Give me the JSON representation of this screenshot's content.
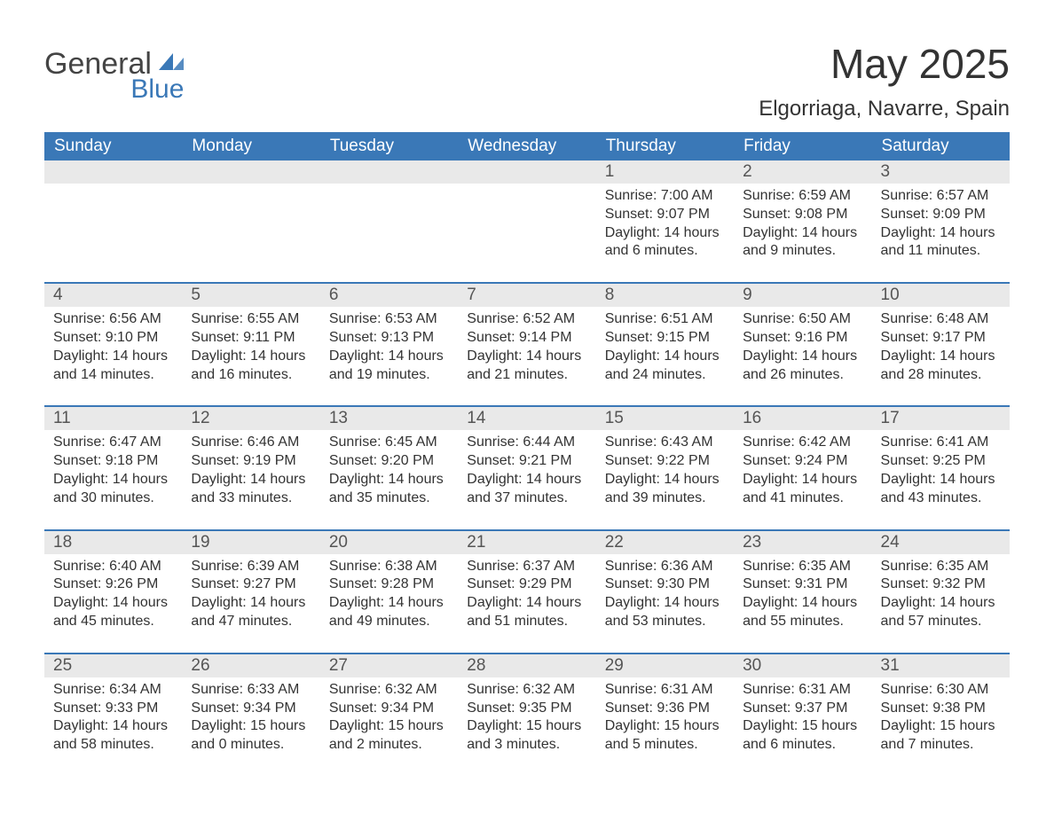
{
  "logo": {
    "general": "General",
    "blue": "Blue",
    "tri_color": "#3a78b7"
  },
  "title": "May 2025",
  "subtitle": "Elgorriaga, Navarre, Spain",
  "header_bg": "#3a78b7",
  "header_fg": "#ffffff",
  "daynum_bg": "#e9e9e9",
  "rule_color": "#3a78b7",
  "weekdays": [
    "Sunday",
    "Monday",
    "Tuesday",
    "Wednesday",
    "Thursday",
    "Friday",
    "Saturday"
  ],
  "first_weekday_index": 4,
  "days": [
    {
      "n": 1,
      "sunrise": "7:00 AM",
      "sunset": "9:07 PM",
      "daylight": "14 hours and 6 minutes."
    },
    {
      "n": 2,
      "sunrise": "6:59 AM",
      "sunset": "9:08 PM",
      "daylight": "14 hours and 9 minutes."
    },
    {
      "n": 3,
      "sunrise": "6:57 AM",
      "sunset": "9:09 PM",
      "daylight": "14 hours and 11 minutes."
    },
    {
      "n": 4,
      "sunrise": "6:56 AM",
      "sunset": "9:10 PM",
      "daylight": "14 hours and 14 minutes."
    },
    {
      "n": 5,
      "sunrise": "6:55 AM",
      "sunset": "9:11 PM",
      "daylight": "14 hours and 16 minutes."
    },
    {
      "n": 6,
      "sunrise": "6:53 AM",
      "sunset": "9:13 PM",
      "daylight": "14 hours and 19 minutes."
    },
    {
      "n": 7,
      "sunrise": "6:52 AM",
      "sunset": "9:14 PM",
      "daylight": "14 hours and 21 minutes."
    },
    {
      "n": 8,
      "sunrise": "6:51 AM",
      "sunset": "9:15 PM",
      "daylight": "14 hours and 24 minutes."
    },
    {
      "n": 9,
      "sunrise": "6:50 AM",
      "sunset": "9:16 PM",
      "daylight": "14 hours and 26 minutes."
    },
    {
      "n": 10,
      "sunrise": "6:48 AM",
      "sunset": "9:17 PM",
      "daylight": "14 hours and 28 minutes."
    },
    {
      "n": 11,
      "sunrise": "6:47 AM",
      "sunset": "9:18 PM",
      "daylight": "14 hours and 30 minutes."
    },
    {
      "n": 12,
      "sunrise": "6:46 AM",
      "sunset": "9:19 PM",
      "daylight": "14 hours and 33 minutes."
    },
    {
      "n": 13,
      "sunrise": "6:45 AM",
      "sunset": "9:20 PM",
      "daylight": "14 hours and 35 minutes."
    },
    {
      "n": 14,
      "sunrise": "6:44 AM",
      "sunset": "9:21 PM",
      "daylight": "14 hours and 37 minutes."
    },
    {
      "n": 15,
      "sunrise": "6:43 AM",
      "sunset": "9:22 PM",
      "daylight": "14 hours and 39 minutes."
    },
    {
      "n": 16,
      "sunrise": "6:42 AM",
      "sunset": "9:24 PM",
      "daylight": "14 hours and 41 minutes."
    },
    {
      "n": 17,
      "sunrise": "6:41 AM",
      "sunset": "9:25 PM",
      "daylight": "14 hours and 43 minutes."
    },
    {
      "n": 18,
      "sunrise": "6:40 AM",
      "sunset": "9:26 PM",
      "daylight": "14 hours and 45 minutes."
    },
    {
      "n": 19,
      "sunrise": "6:39 AM",
      "sunset": "9:27 PM",
      "daylight": "14 hours and 47 minutes."
    },
    {
      "n": 20,
      "sunrise": "6:38 AM",
      "sunset": "9:28 PM",
      "daylight": "14 hours and 49 minutes."
    },
    {
      "n": 21,
      "sunrise": "6:37 AM",
      "sunset": "9:29 PM",
      "daylight": "14 hours and 51 minutes."
    },
    {
      "n": 22,
      "sunrise": "6:36 AM",
      "sunset": "9:30 PM",
      "daylight": "14 hours and 53 minutes."
    },
    {
      "n": 23,
      "sunrise": "6:35 AM",
      "sunset": "9:31 PM",
      "daylight": "14 hours and 55 minutes."
    },
    {
      "n": 24,
      "sunrise": "6:35 AM",
      "sunset": "9:32 PM",
      "daylight": "14 hours and 57 minutes."
    },
    {
      "n": 25,
      "sunrise": "6:34 AM",
      "sunset": "9:33 PM",
      "daylight": "14 hours and 58 minutes."
    },
    {
      "n": 26,
      "sunrise": "6:33 AM",
      "sunset": "9:34 PM",
      "daylight": "15 hours and 0 minutes."
    },
    {
      "n": 27,
      "sunrise": "6:32 AM",
      "sunset": "9:34 PM",
      "daylight": "15 hours and 2 minutes."
    },
    {
      "n": 28,
      "sunrise": "6:32 AM",
      "sunset": "9:35 PM",
      "daylight": "15 hours and 3 minutes."
    },
    {
      "n": 29,
      "sunrise": "6:31 AM",
      "sunset": "9:36 PM",
      "daylight": "15 hours and 5 minutes."
    },
    {
      "n": 30,
      "sunrise": "6:31 AM",
      "sunset": "9:37 PM",
      "daylight": "15 hours and 6 minutes."
    },
    {
      "n": 31,
      "sunrise": "6:30 AM",
      "sunset": "9:38 PM",
      "daylight": "15 hours and 7 minutes."
    }
  ],
  "labels": {
    "sunrise": "Sunrise: ",
    "sunset": "Sunset: ",
    "daylight": "Daylight: "
  }
}
